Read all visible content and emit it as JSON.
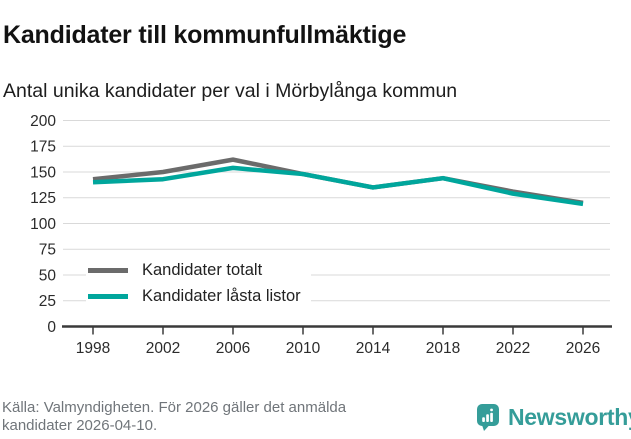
{
  "header": {
    "title": "Kandidater till kommunfullmäktige",
    "subtitle": "Antal unika kandidater per val i Mörbylånga kommun"
  },
  "chart_data": {
    "type": "line",
    "x": [
      1998,
      2002,
      2006,
      2010,
      2014,
      2018,
      2022,
      2026
    ],
    "series": [
      {
        "name": "Kandidater totalt",
        "color": "#6b6b6b",
        "values": [
          143,
          150,
          162,
          148,
          135,
          144,
          131,
          120
        ]
      },
      {
        "name": "Kandidater låsta listor",
        "color": "#00a69c",
        "values": [
          140,
          143,
          154,
          148,
          135,
          144,
          129,
          119
        ]
      }
    ],
    "ylim": [
      0,
      200
    ],
    "yticks": [
      0,
      25,
      50,
      75,
      100,
      125,
      150,
      175,
      200
    ],
    "grid": true,
    "legend_position": "inside-left",
    "gridline_color": "#d9d9d9",
    "axis_color": "#3a3a3a",
    "tick_label_color": "#2b2b2b"
  },
  "footer": {
    "lines": [
      "Källa: Valmyndigheten. För 2026 gäller det anmälda",
      "kandidater 2026-04-10."
    ]
  },
  "brand": {
    "name": "Newsworthy",
    "color": "#359d99",
    "icon": "newsworthy-speech-bubble-bar-chart-icon"
  }
}
